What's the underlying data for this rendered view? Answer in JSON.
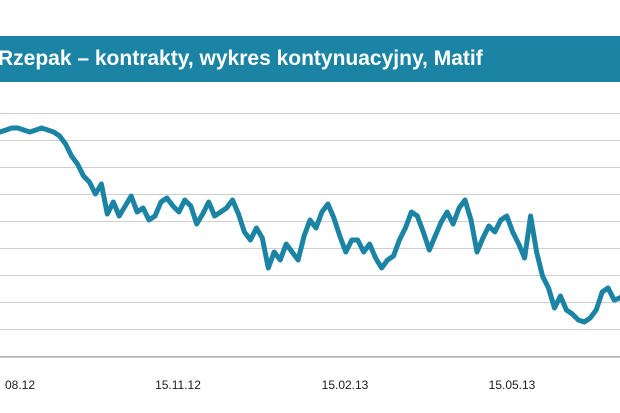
{
  "colors": {
    "accent": "#1b84a5",
    "title_text": "#ffffff",
    "grid": "#cfcfcf",
    "background": "#ffffff"
  },
  "chart_data": {
    "type": "line",
    "title": "Rzepak – kontrakty, wykres kontynuacyjny, Matif",
    "xlabel": "",
    "ylabel": "",
    "x_tick_labels": [
      "08.12",
      "15.11.12",
      "15.02.13",
      "15.05.13"
    ],
    "grid": true,
    "legend": "none",
    "series": [
      {
        "values": [
          540,
          541,
          542,
          542,
          541,
          540,
          541,
          542,
          541,
          540,
          538,
          534,
          528,
          524,
          518,
          515,
          509,
          514,
          499,
          505,
          498,
          503,
          508,
          500,
          502,
          496,
          498,
          505,
          507,
          503,
          500,
          506,
          503,
          494,
          499,
          505,
          498,
          500,
          502,
          506,
          499,
          490,
          486,
          492,
          487,
          472,
          480,
          476,
          484,
          480,
          476,
          488,
          496,
          492,
          500,
          504,
          497,
          488,
          480,
          486,
          486,
          480,
          484,
          477,
          472,
          476,
          478,
          486,
          492,
          500,
          498,
          490,
          481,
          488,
          495,
          500,
          494,
          502,
          506,
          496,
          480,
          487,
          493,
          490,
          496,
          498,
          490,
          484,
          477,
          498,
          480,
          468,
          462,
          452,
          458,
          451,
          449,
          446,
          445,
          447,
          451,
          460,
          462,
          456,
          457,
          460
        ]
      }
    ]
  }
}
